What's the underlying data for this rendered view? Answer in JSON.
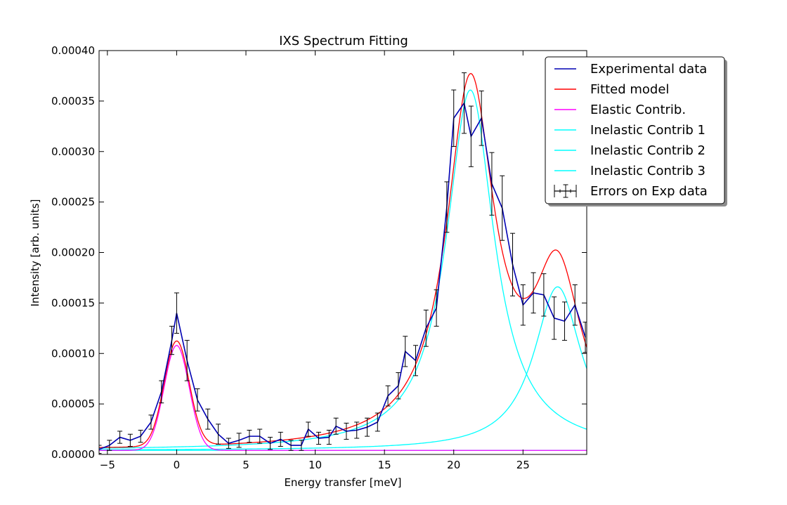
{
  "chart_data": {
    "type": "line",
    "title": "IXS Spectrum Fitting",
    "xlabel": "Energy transfer [meV]",
    "ylabel": "Intensity [arb. units]",
    "xlim": [
      -5.6,
      29.6
    ],
    "ylim": [
      0,
      0.0004
    ],
    "x_ticks": [
      {
        "value": -5,
        "label": "−5"
      },
      {
        "value": 0,
        "label": "0"
      },
      {
        "value": 5,
        "label": "5"
      },
      {
        "value": 10,
        "label": "10"
      },
      {
        "value": 15,
        "label": "15"
      },
      {
        "value": 20,
        "label": "20"
      },
      {
        "value": 25,
        "label": "25"
      }
    ],
    "y_ticks": [
      {
        "value": 0,
        "label": "0.00000"
      },
      {
        "value": 5e-05,
        "label": "0.00005"
      },
      {
        "value": 0.0001,
        "label": "0.00010"
      },
      {
        "value": 0.00015,
        "label": "0.00015"
      },
      {
        "value": 0.0002,
        "label": "0.00020"
      },
      {
        "value": 0.00025,
        "label": "0.00025"
      },
      {
        "value": 0.0003,
        "label": "0.00030"
      },
      {
        "value": 0.00035,
        "label": "0.00035"
      },
      {
        "value": 0.0004,
        "label": "0.00040"
      }
    ],
    "grid": false,
    "legend_position": "upper-right",
    "experimental": {
      "name": "Experimental data",
      "color": "#0000b3",
      "x": [
        -5.6,
        -4.85,
        -4.1,
        -3.35,
        -2.6,
        -1.85,
        -1.1,
        -0.35,
        0.0,
        0.75,
        1.5,
        2.25,
        3.0,
        3.75,
        4.5,
        5.25,
        6.0,
        6.75,
        7.5,
        8.25,
        9.0,
        9.5,
        10.25,
        11.0,
        11.5,
        12.25,
        13.0,
        13.75,
        14.5,
        15.25,
        16.0,
        16.5,
        17.25,
        18.0,
        18.75,
        19.5,
        20.0,
        20.75,
        21.25,
        22.0,
        22.75,
        23.5,
        24.25,
        25.0,
        25.75,
        26.5,
        27.25,
        28.0,
        28.75,
        29.5
      ],
      "y": [
        5e-06,
        9e-06,
        1.7e-05,
        1.4e-05,
        1.8e-05,
        3.2e-05,
        6.2e-05,
        0.000113,
        0.00014,
        9.3e-05,
        5.4e-05,
        3.5e-05,
        2e-05,
        1.1e-05,
        1.4e-05,
        1.8e-05,
        1.8e-05,
        1.1e-05,
        1.5e-05,
        9e-06,
        9e-06,
        2.5e-05,
        1.6e-05,
        1.7e-05,
        2.8e-05,
        2.3e-05,
        2.4e-05,
        2.7e-05,
        3.2e-05,
        5.8e-05,
        6.8e-05,
        0.000102,
        9.3e-05,
        0.000125,
        0.000145,
        0.000245,
        0.000333,
        0.000348,
        0.000315,
        0.000333,
        0.000268,
        0.000244,
        0.000188,
        0.000148,
        0.00016,
        0.000158,
        0.000135,
        0.000132,
        0.000148,
        0.000116
      ],
      "err": [
        4e-06,
        5e-06,
        6e-06,
        6e-06,
        6e-06,
        7e-06,
        1.1e-05,
        1.4e-05,
        2e-05,
        2e-05,
        1.1e-05,
        1e-05,
        1e-05,
        5e-06,
        7e-06,
        6e-06,
        7e-06,
        6e-06,
        7e-06,
        5e-06,
        5e-06,
        7e-06,
        6e-06,
        7e-06,
        8e-06,
        8e-06,
        8e-06,
        9e-06,
        9e-06,
        1e-05,
        1.3e-05,
        1.5e-05,
        1.5e-05,
        1.8e-05,
        1.8e-05,
        2.5e-05,
        2.8e-05,
        3e-05,
        3e-05,
        2.7e-05,
        3.1e-05,
        3.2e-05,
        3.1e-05,
        2e-05,
        2e-05,
        2.1e-05,
        2.1e-05,
        1.9e-05,
        2e-05,
        1.5e-05
      ]
    },
    "error_series": {
      "name": "Errors on Exp data",
      "color": "#000000"
    },
    "model_series": [
      {
        "name": "Fitted model",
        "color": "#ff0000"
      },
      {
        "name": "Elastic Contrib.",
        "color": "#ff00ff"
      },
      {
        "name": "Inelastic Contrib 1",
        "color": "#00ffff"
      },
      {
        "name": "Inelastic Contrib 2",
        "color": "#00ffff"
      },
      {
        "name": "Inelastic Contrib 3",
        "color": "#00ffff"
      }
    ],
    "model_params": {
      "elastic": {
        "amplitude": 0.000104,
        "center": 0.0,
        "sigma": 0.9
      },
      "inelastic_1": {
        "amplitude": 0.000357,
        "center": 21.2,
        "hwhm": 2.1
      },
      "inelastic_2": {
        "amplitude": 0.000162,
        "center": 27.5,
        "hwhm": 2.1
      },
      "inelastic_3": {
        "amplitude": 2e-07,
        "center": 60.0,
        "hwhm": 20.0
      },
      "background": 4e-06
    }
  }
}
